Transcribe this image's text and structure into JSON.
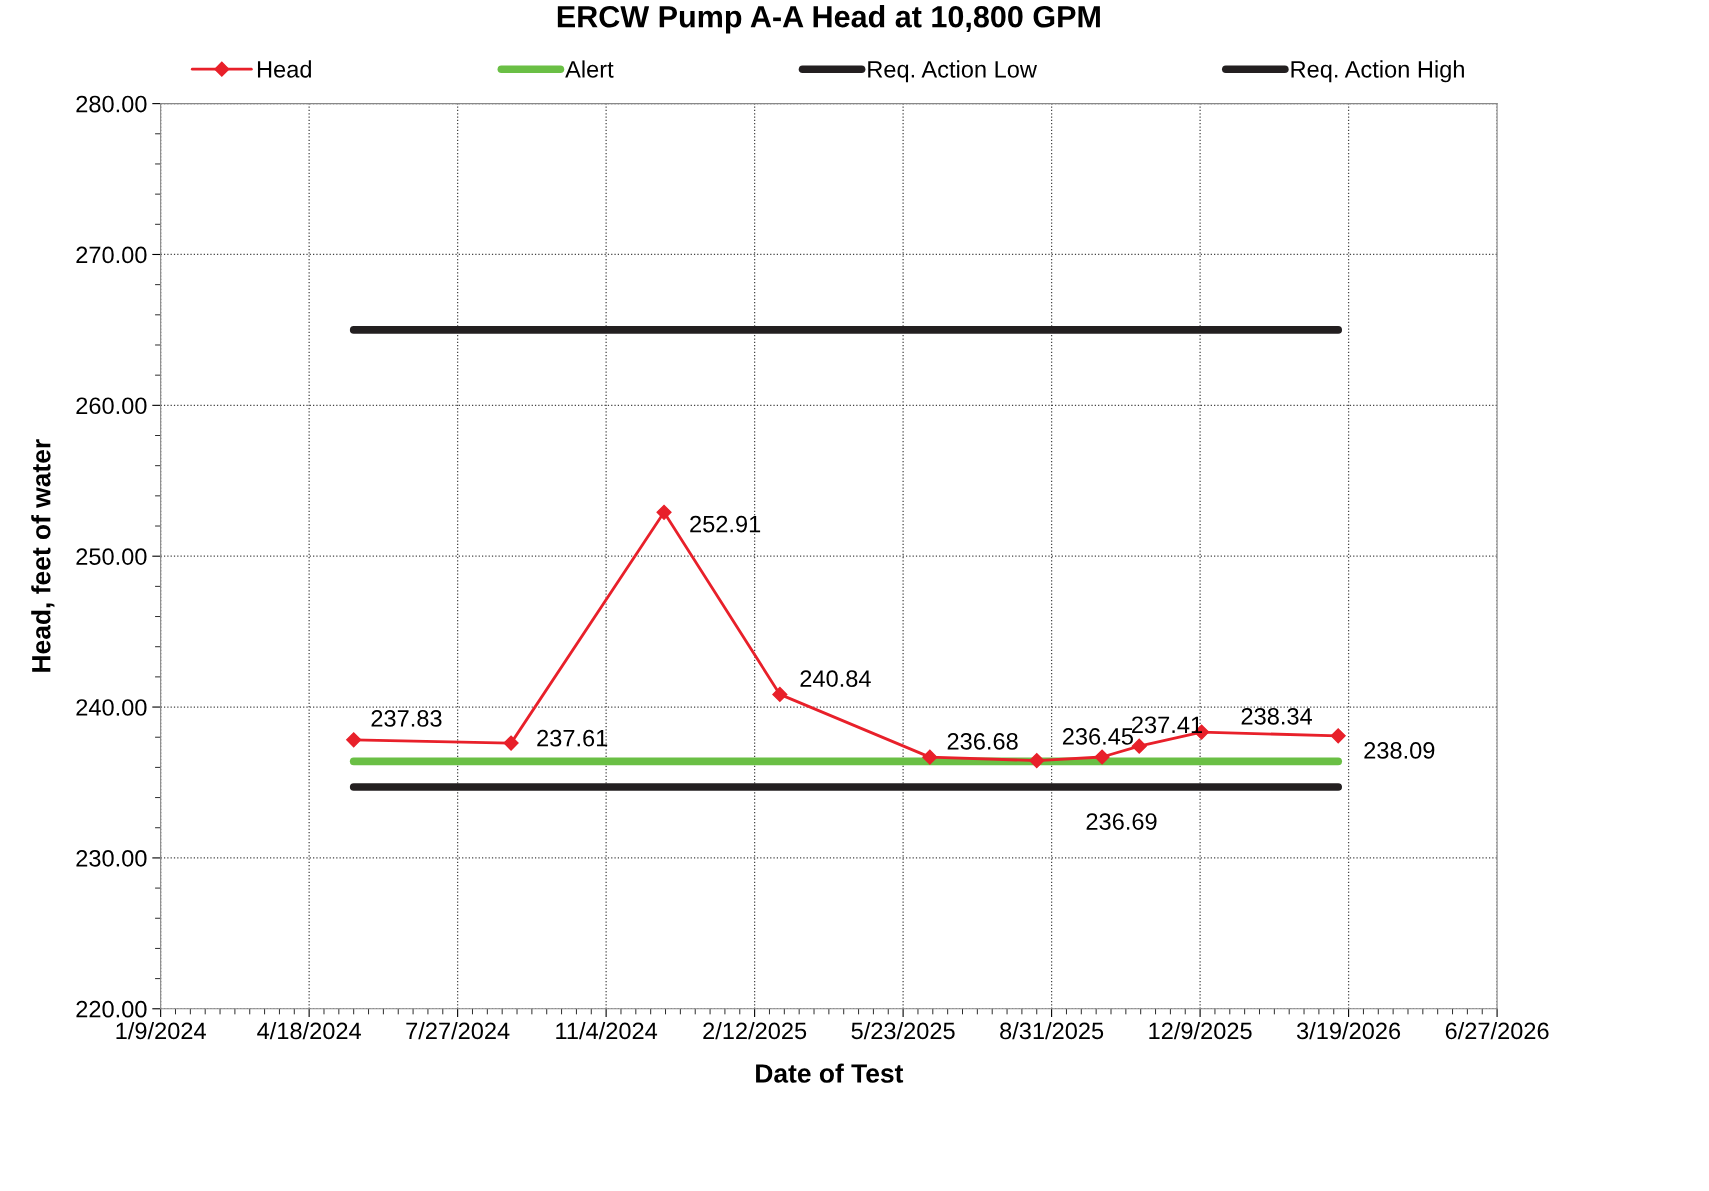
{
  "chart_data": {
    "type": "line",
    "title": "ERCW Pump A-A Head at 10,800 GPM",
    "xlabel": "Date of Test",
    "ylabel": "Head, feet of water",
    "series": [
      {
        "name": "Head",
        "color": "#e8202a",
        "marker": "diamond",
        "x": [
          "2024-05-18",
          "2024-09-01",
          "2024-12-13",
          "2025-03-01",
          "2025-06-10",
          "2025-08-21",
          "2025-10-04",
          "2025-10-29",
          "2025-12-10",
          "2026-03-12"
        ],
        "values": [
          237.83,
          237.61,
          252.91,
          240.84,
          236.68,
          236.45,
          236.69,
          237.41,
          238.34,
          238.09
        ],
        "data_labels": true
      },
      {
        "name": "Alert",
        "color": "#6abf45",
        "marker": "none",
        "x": [
          "2024-05-18",
          "2026-03-12"
        ],
        "values": [
          236.4,
          236.4
        ]
      },
      {
        "name": "Req. Action Low",
        "color": "#231f20",
        "marker": "none",
        "x": [
          "2024-05-18",
          "2026-03-12"
        ],
        "values": [
          234.7,
          234.7
        ]
      },
      {
        "name": "Req. Action High",
        "color": "#231f20",
        "marker": "none",
        "x": [
          "2024-05-18",
          "2026-03-12"
        ],
        "values": [
          265.0,
          265.0
        ]
      }
    ],
    "xlim": [
      "2024-01-09",
      "2026-06-27"
    ],
    "xticks": [
      {
        "value": "2024-01-09",
        "label": "1/9/2024"
      },
      {
        "value": "2024-04-18",
        "label": "4/18/2024"
      },
      {
        "value": "2024-07-27",
        "label": "7/27/2024"
      },
      {
        "value": "2024-11-04",
        "label": "11/4/2024"
      },
      {
        "value": "2025-02-12",
        "label": "2/12/2025"
      },
      {
        "value": "2025-05-23",
        "label": "5/23/2025"
      },
      {
        "value": "2025-08-31",
        "label": "8/31/2025"
      },
      {
        "value": "2025-12-09",
        "label": "12/9/2025"
      },
      {
        "value": "2026-03-19",
        "label": "3/19/2026"
      },
      {
        "value": "2026-06-27",
        "label": "6/27/2026"
      }
    ],
    "ylim": [
      220,
      280
    ],
    "yticks": [
      {
        "value": 220,
        "label": "220.00"
      },
      {
        "value": 230,
        "label": "230.00"
      },
      {
        "value": 240,
        "label": "240.00"
      },
      {
        "value": 250,
        "label": "250.00"
      },
      {
        "value": 260,
        "label": "260.00"
      },
      {
        "value": 270,
        "label": "270.00"
      },
      {
        "value": 280,
        "label": "280.00"
      }
    ],
    "grid": true,
    "legend": "top"
  }
}
